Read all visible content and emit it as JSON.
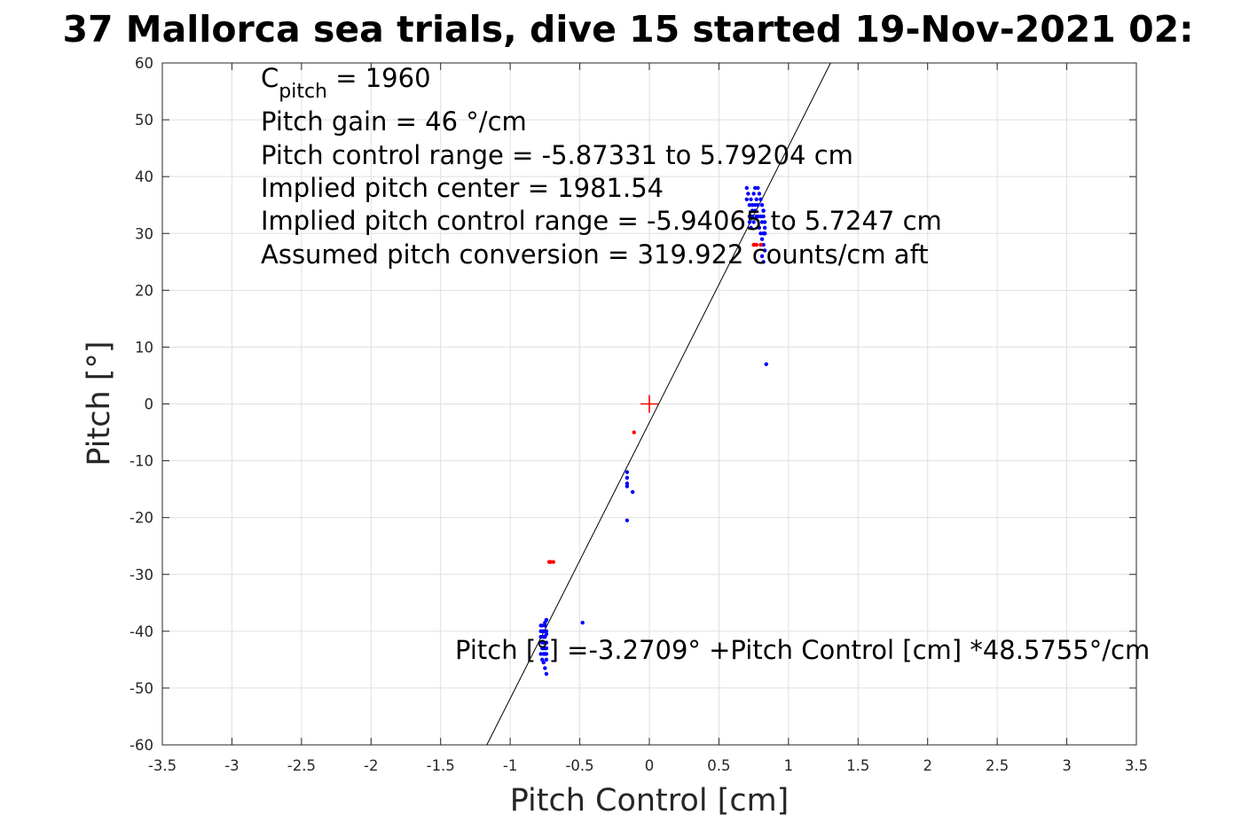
{
  "chart_data": {
    "type": "scatter",
    "title": "37 Mallorca sea trials, dive 15 started 19-Nov-2021 02:",
    "xlabel": "Pitch Control [cm]",
    "ylabel": "Pitch [°]",
    "xlim": [
      -3.5,
      3.5
    ],
    "ylim": [
      -60,
      60
    ],
    "xticks": [
      -3.5,
      -3,
      -2.5,
      -2,
      -1.5,
      -1,
      -0.5,
      0,
      0.5,
      1,
      1.5,
      2,
      2.5,
      3,
      3.5
    ],
    "xtick_labels": [
      "-3.5",
      "-3",
      "-2.5",
      "-2",
      "-1.5",
      "-1",
      "-0.5",
      "0",
      "0.5",
      "1",
      "1.5",
      "2",
      "2.5",
      "3",
      "3.5"
    ],
    "yticks": [
      -60,
      -50,
      -40,
      -30,
      -20,
      -10,
      0,
      10,
      20,
      30,
      40,
      50,
      60
    ],
    "ytick_labels": [
      "-60",
      "-50",
      "-40",
      "-30",
      "-20",
      "-10",
      "0",
      "10",
      "20",
      "30",
      "40",
      "50",
      "60"
    ],
    "grid": true,
    "annotations": {
      "c_pitch_main": "C",
      "c_pitch_sub": "pitch",
      "c_pitch_value": " = 1960",
      "lines": [
        "Pitch gain = 46 °/cm",
        "Pitch control range = -5.87331 to 5.79204 cm",
        "Implied pitch center = 1981.54",
        "Implied pitch control range = -5.94065 to 5.7247 cm",
        "Assumed pitch conversion = 319.922 counts/cm aft"
      ],
      "fit_equation": "Pitch [°] =-3.2709° +Pitch Control [cm] *48.5755°/cm"
    },
    "fit_line": {
      "intercept": -3.2709,
      "slope": 48.5755,
      "color": "#000000"
    },
    "center_marker": {
      "x": 0,
      "y": 0,
      "color": "#ff0000"
    },
    "series": [
      {
        "color": "#0000ff",
        "x": [
          -0.78,
          -0.78,
          -0.77,
          -0.77,
          -0.76,
          -0.76,
          -0.75,
          -0.75,
          -0.74,
          -0.74,
          -0.78,
          -0.77,
          -0.76,
          -0.75,
          -0.74,
          -0.77,
          -0.76,
          -0.75,
          -0.78,
          -0.77,
          -0.76,
          -0.75,
          -0.74,
          -0.76,
          -0.75,
          -0.74,
          -0.75,
          -0.76,
          -0.75,
          -0.74,
          -0.74,
          -0.74,
          -0.74,
          -0.48,
          -0.16,
          -0.16,
          -0.16,
          -0.16,
          -0.12,
          -0.16,
          0.7,
          0.71,
          0.72,
          0.72,
          0.73,
          0.74,
          0.75,
          0.76,
          0.77,
          0.78,
          0.79,
          0.8,
          0.81,
          0.82,
          0.72,
          0.74,
          0.76,
          0.78,
          0.8,
          0.82,
          0.73,
          0.75,
          0.77,
          0.79,
          0.81,
          0.83,
          0.8,
          0.81,
          0.82,
          0.83,
          0.81,
          0.82,
          0.83,
          0.82,
          0.83,
          0.82,
          0.83,
          0.76,
          0.78,
          0.74,
          0.7,
          0.84
        ],
        "y": [
          -40,
          -41,
          -39,
          -42,
          -40,
          -43,
          -39,
          -41,
          -38,
          -40,
          -44,
          -43,
          -42,
          -44,
          -42,
          -45,
          -44,
          -43,
          -39,
          -40,
          -41,
          -38.5,
          -43,
          -45.5,
          -46.5,
          -45,
          -43,
          -41,
          -39,
          -47.5,
          -38,
          -44,
          -40.5,
          -38.5,
          -12,
          -13,
          -14,
          -14.5,
          -15.5,
          -20.5,
          36,
          37,
          35,
          33,
          36,
          34,
          37,
          35,
          36,
          38,
          37,
          36,
          35,
          34,
          32,
          33,
          34,
          35,
          33,
          30,
          31,
          32,
          33,
          31,
          32,
          31,
          30,
          29,
          28,
          27,
          26,
          25,
          30,
          33,
          32,
          34,
          30,
          38,
          33,
          35,
          38,
          7
        ]
      },
      {
        "color": "#ff0000",
        "x": [
          -0.72,
          -0.71,
          -0.69,
          -0.11,
          0.75,
          0.76,
          0.77,
          0.8
        ],
        "y": [
          -27.8,
          -27.8,
          -27.8,
          -5,
          28,
          28,
          28,
          28
        ]
      }
    ]
  }
}
